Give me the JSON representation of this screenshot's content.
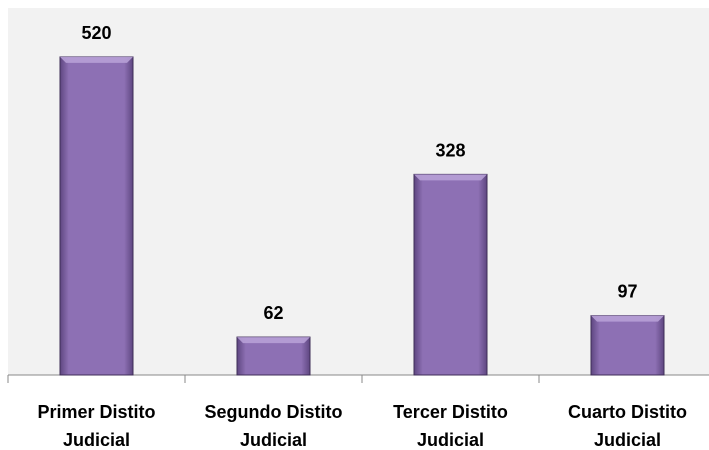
{
  "chart_data": {
    "type": "bar",
    "categories": [
      "Primer Distito Judicial",
      "Segundo Distito Judicial",
      "Tercer Distito Judicial",
      "Cuarto Distito Judicial"
    ],
    "values": [
      520,
      62,
      328,
      97
    ],
    "color": "#8a6bb0",
    "ylim": [
      0,
      600
    ]
  }
}
